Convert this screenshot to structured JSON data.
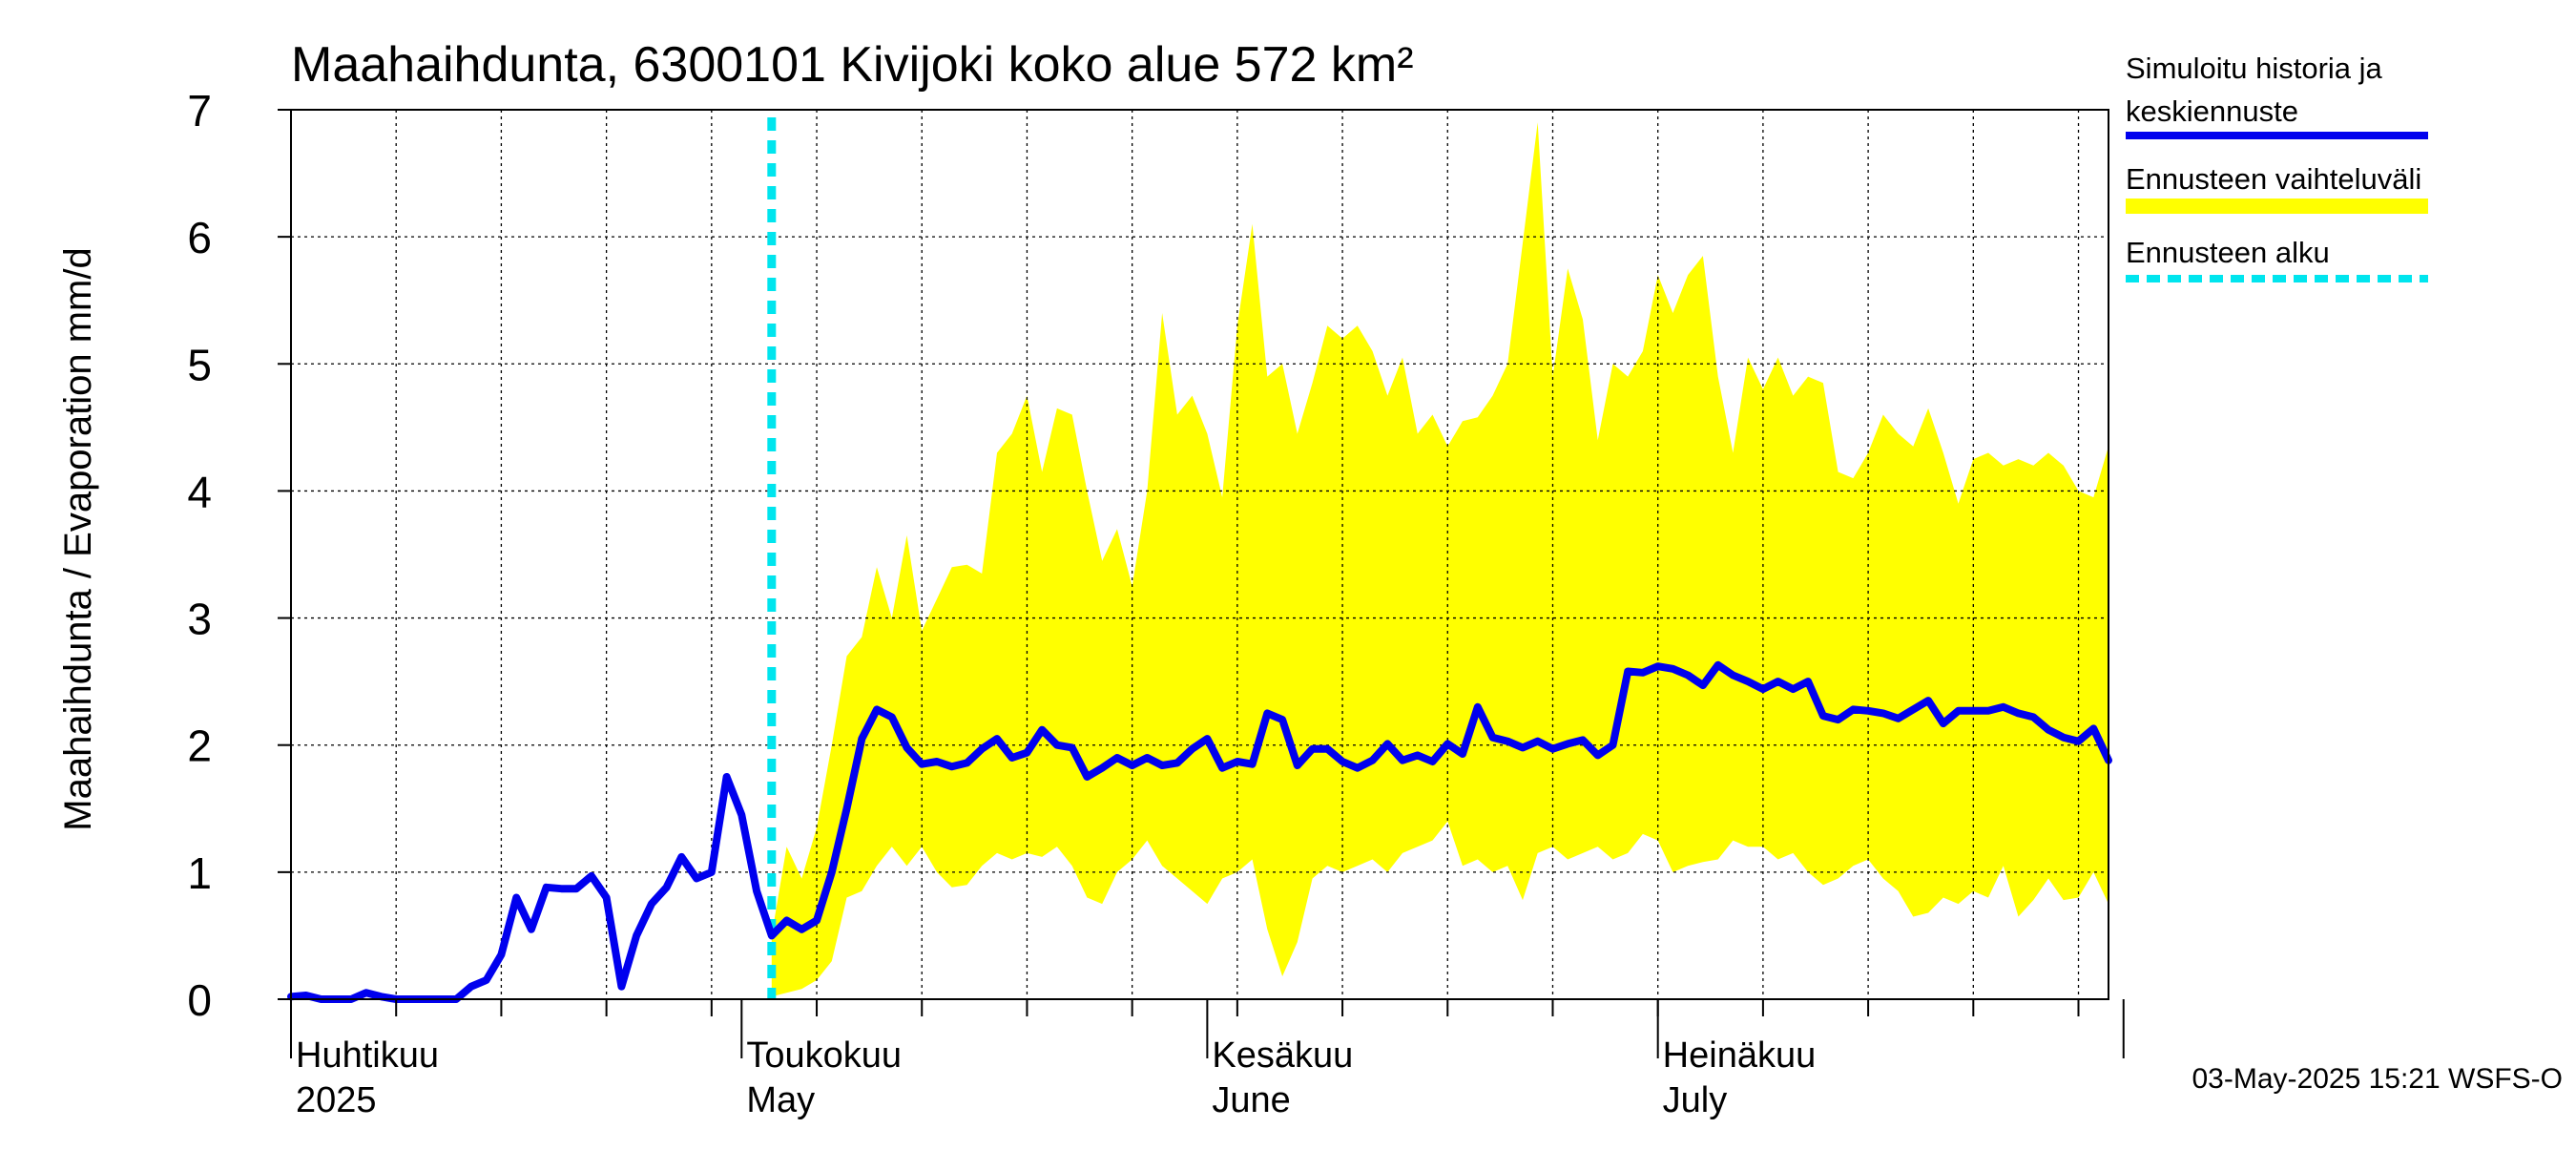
{
  "chart_data": {
    "type": "area",
    "title": "Maahaihdunta, 6300101 Kivijoki koko alue 572 km²",
    "ylabel": "Maahaihdunta / Evaporation   mm/d",
    "ylim": [
      0,
      7
    ],
    "yticks": [
      0,
      1,
      2,
      3,
      4,
      5,
      6,
      7
    ],
    "xlim": [
      "2025-04-01",
      "2025-07-31"
    ],
    "grid": true,
    "legend_position": "right",
    "month_labels": [
      {
        "date": "2025-04-01",
        "fi": "Huhtikuu",
        "en": "2025"
      },
      {
        "date": "2025-05-01",
        "fi": "Toukokuu",
        "en": "May"
      },
      {
        "date": "2025-06-01",
        "fi": "Kesäkuu",
        "en": "June"
      },
      {
        "date": "2025-07-01",
        "fi": "Heinäkuu",
        "en": "July"
      }
    ],
    "month_ticks": [
      "2025-04-01",
      "2025-05-01",
      "2025-06-01",
      "2025-07-01",
      "2025-08-01"
    ],
    "forecast_start": "2025-05-03",
    "footer": "03-May-2025 15:21 WSFS-O",
    "colors": {
      "sim": "#0000ee",
      "band": "#ffff00",
      "forecast_start": "#00e5ee",
      "grid": "#000000"
    },
    "legend": [
      {
        "label_lines": [
          "Simuloitu historia ja",
          "keskiennuste"
        ],
        "style": "sim"
      },
      {
        "label_lines": [
          "Ennusteen vaihteluväli"
        ],
        "style": "band"
      },
      {
        "label_lines": [
          "Ennusteen alku"
        ],
        "style": "forecast_start"
      }
    ],
    "series": [
      {
        "name": "Simuloitu historia ja keskiennuste",
        "x": [
          "2025-04-01",
          "2025-04-02",
          "2025-04-03",
          "2025-04-04",
          "2025-04-05",
          "2025-04-06",
          "2025-04-07",
          "2025-04-08",
          "2025-04-09",
          "2025-04-10",
          "2025-04-11",
          "2025-04-12",
          "2025-04-13",
          "2025-04-14",
          "2025-04-15",
          "2025-04-16",
          "2025-04-17",
          "2025-04-18",
          "2025-04-19",
          "2025-04-20",
          "2025-04-21",
          "2025-04-22",
          "2025-04-23",
          "2025-04-24",
          "2025-04-25",
          "2025-04-26",
          "2025-04-27",
          "2025-04-28",
          "2025-04-29",
          "2025-04-30",
          "2025-05-01",
          "2025-05-02",
          "2025-05-03",
          "2025-05-04",
          "2025-05-05",
          "2025-05-06",
          "2025-05-07",
          "2025-05-08",
          "2025-05-09",
          "2025-05-10",
          "2025-05-11",
          "2025-05-12",
          "2025-05-13",
          "2025-05-14",
          "2025-05-15",
          "2025-05-16",
          "2025-05-17",
          "2025-05-18",
          "2025-05-19",
          "2025-05-20",
          "2025-05-21",
          "2025-05-22",
          "2025-05-23",
          "2025-05-24",
          "2025-05-25",
          "2025-05-26",
          "2025-05-27",
          "2025-05-28",
          "2025-05-29",
          "2025-05-30",
          "2025-05-31",
          "2025-06-01",
          "2025-06-02",
          "2025-06-03",
          "2025-06-04",
          "2025-06-05",
          "2025-06-06",
          "2025-06-07",
          "2025-06-08",
          "2025-06-09",
          "2025-06-10",
          "2025-06-11",
          "2025-06-12",
          "2025-06-13",
          "2025-06-14",
          "2025-06-15",
          "2025-06-16",
          "2025-06-17",
          "2025-06-18",
          "2025-06-19",
          "2025-06-20",
          "2025-06-21",
          "2025-06-22",
          "2025-06-23",
          "2025-06-24",
          "2025-06-25",
          "2025-06-26",
          "2025-06-27",
          "2025-06-28",
          "2025-06-29",
          "2025-06-30",
          "2025-07-01",
          "2025-07-02",
          "2025-07-03",
          "2025-07-04",
          "2025-07-05",
          "2025-07-06",
          "2025-07-07",
          "2025-07-08",
          "2025-07-09",
          "2025-07-10",
          "2025-07-11",
          "2025-07-12",
          "2025-07-13",
          "2025-07-14",
          "2025-07-15",
          "2025-07-16",
          "2025-07-17",
          "2025-07-18",
          "2025-07-19",
          "2025-07-20",
          "2025-07-21",
          "2025-07-22",
          "2025-07-23",
          "2025-07-24",
          "2025-07-25",
          "2025-07-26",
          "2025-07-27",
          "2025-07-28",
          "2025-07-29",
          "2025-07-30",
          "2025-07-31"
        ],
        "y": [
          0.02,
          0.03,
          0.0,
          0.0,
          0.0,
          0.05,
          0.02,
          0.0,
          0.0,
          0.0,
          0.0,
          0.0,
          0.1,
          0.15,
          0.35,
          0.8,
          0.55,
          0.88,
          0.87,
          0.87,
          0.97,
          0.8,
          0.1,
          0.5,
          0.75,
          0.88,
          1.12,
          0.95,
          1.0,
          1.75,
          1.45,
          0.85,
          0.5,
          0.62,
          0.55,
          0.62,
          1.0,
          1.5,
          2.05,
          2.28,
          2.22,
          1.98,
          1.85,
          1.87,
          1.83,
          1.86,
          1.97,
          2.05,
          1.9,
          1.94,
          2.12,
          2.0,
          1.98,
          1.75,
          1.82,
          1.9,
          1.84,
          1.9,
          1.84,
          1.86,
          1.97,
          2.05,
          1.82,
          1.87,
          1.85,
          2.25,
          2.2,
          1.84,
          1.97,
          1.97,
          1.87,
          1.82,
          1.88,
          2.01,
          1.88,
          1.92,
          1.87,
          2.01,
          1.93,
          2.3,
          2.06,
          2.03,
          1.98,
          2.03,
          1.97,
          2.01,
          2.04,
          1.92,
          2.0,
          2.58,
          2.57,
          2.62,
          2.6,
          2.55,
          2.47,
          2.63,
          2.55,
          2.5,
          2.44,
          2.5,
          2.44,
          2.5,
          2.23,
          2.2,
          2.28,
          2.27,
          2.25,
          2.21,
          2.28,
          2.35,
          2.17,
          2.27,
          2.27,
          2.27,
          2.3,
          2.25,
          2.22,
          2.12,
          2.06,
          2.03,
          2.13,
          1.88
        ]
      },
      {
        "name": "Ennusteen vaihteluväli",
        "x": [
          "2025-05-03",
          "2025-05-04",
          "2025-05-05",
          "2025-05-06",
          "2025-05-07",
          "2025-05-08",
          "2025-05-09",
          "2025-05-10",
          "2025-05-11",
          "2025-05-12",
          "2025-05-13",
          "2025-05-14",
          "2025-05-15",
          "2025-05-16",
          "2025-05-17",
          "2025-05-18",
          "2025-05-19",
          "2025-05-20",
          "2025-05-21",
          "2025-05-22",
          "2025-05-23",
          "2025-05-24",
          "2025-05-25",
          "2025-05-26",
          "2025-05-27",
          "2025-05-28",
          "2025-05-29",
          "2025-05-30",
          "2025-05-31",
          "2025-06-01",
          "2025-06-02",
          "2025-06-03",
          "2025-06-04",
          "2025-06-05",
          "2025-06-06",
          "2025-06-07",
          "2025-06-08",
          "2025-06-09",
          "2025-06-10",
          "2025-06-11",
          "2025-06-12",
          "2025-06-13",
          "2025-06-14",
          "2025-06-15",
          "2025-06-16",
          "2025-06-17",
          "2025-06-18",
          "2025-06-19",
          "2025-06-20",
          "2025-06-21",
          "2025-06-22",
          "2025-06-23",
          "2025-06-24",
          "2025-06-25",
          "2025-06-26",
          "2025-06-27",
          "2025-06-28",
          "2025-06-29",
          "2025-06-30",
          "2025-07-01",
          "2025-07-02",
          "2025-07-03",
          "2025-07-04",
          "2025-07-05",
          "2025-07-06",
          "2025-07-07",
          "2025-07-08",
          "2025-07-09",
          "2025-07-10",
          "2025-07-11",
          "2025-07-12",
          "2025-07-13",
          "2025-07-14",
          "2025-07-15",
          "2025-07-16",
          "2025-07-17",
          "2025-07-18",
          "2025-07-19",
          "2025-07-20",
          "2025-07-21",
          "2025-07-22",
          "2025-07-23",
          "2025-07-24",
          "2025-07-25",
          "2025-07-26",
          "2025-07-27",
          "2025-07-28",
          "2025-07-29",
          "2025-07-30",
          "2025-07-31"
        ],
        "low": [
          0.02,
          0.05,
          0.08,
          0.15,
          0.3,
          0.8,
          0.85,
          1.05,
          1.2,
          1.05,
          1.2,
          1.0,
          0.88,
          0.9,
          1.05,
          1.15,
          1.1,
          1.15,
          1.12,
          1.2,
          1.05,
          0.8,
          0.75,
          1.0,
          1.1,
          1.25,
          1.05,
          0.95,
          0.85,
          0.75,
          0.95,
          1.0,
          1.1,
          0.55,
          0.18,
          0.45,
          0.95,
          1.05,
          1.0,
          1.05,
          1.1,
          1.0,
          1.15,
          1.2,
          1.25,
          1.4,
          1.05,
          1.1,
          1.0,
          1.05,
          0.78,
          1.15,
          1.2,
          1.1,
          1.15,
          1.2,
          1.1,
          1.15,
          1.3,
          1.25,
          1.0,
          1.05,
          1.08,
          1.1,
          1.25,
          1.2,
          1.2,
          1.1,
          1.15,
          1.0,
          0.9,
          0.95,
          1.05,
          1.1,
          0.95,
          0.85,
          0.65,
          0.68,
          0.8,
          0.75,
          0.85,
          0.8,
          1.05,
          0.65,
          0.78,
          0.95,
          0.78,
          0.8,
          1.0,
          0.75
        ],
        "high": [
          0.5,
          1.2,
          0.95,
          1.35,
          2.0,
          2.7,
          2.85,
          3.4,
          3.0,
          3.65,
          2.9,
          3.15,
          3.4,
          3.42,
          3.35,
          4.3,
          4.45,
          4.75,
          4.15,
          4.65,
          4.6,
          4.0,
          3.45,
          3.7,
          3.25,
          4.0,
          5.4,
          4.6,
          4.75,
          4.45,
          3.95,
          5.3,
          6.1,
          4.9,
          5.0,
          4.45,
          4.85,
          5.3,
          5.2,
          5.3,
          5.1,
          4.75,
          5.05,
          4.45,
          4.6,
          4.35,
          4.55,
          4.58,
          4.75,
          5.0,
          5.95,
          6.9,
          4.9,
          5.75,
          5.35,
          4.4,
          5.0,
          4.9,
          5.1,
          5.7,
          5.4,
          5.7,
          5.85,
          4.9,
          4.3,
          5.05,
          4.8,
          5.05,
          4.75,
          4.9,
          4.85,
          4.15,
          4.1,
          4.3,
          4.6,
          4.45,
          4.35,
          4.65,
          4.3,
          3.9,
          4.25,
          4.3,
          4.2,
          4.25,
          4.2,
          4.3,
          4.2,
          4.0,
          3.95,
          4.35
        ]
      }
    ]
  }
}
